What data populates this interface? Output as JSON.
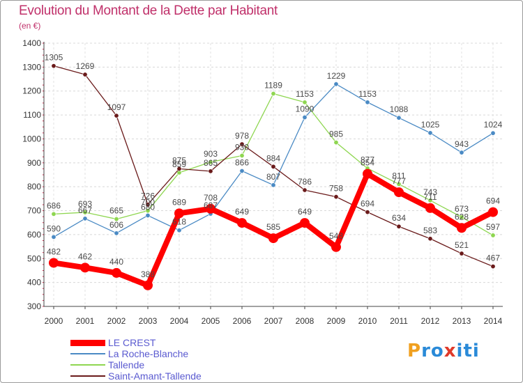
{
  "header": {
    "title": "Evolution du Montant de la Dette par Habitant",
    "unit": "(en €)"
  },
  "brand": {
    "letters": [
      "P",
      "r",
      "o",
      "x",
      "i",
      "t",
      "i"
    ],
    "colors": [
      "#f0a020",
      "#2a8ad8",
      "#2a8ad8",
      "#e03a2a",
      "#2a8ad8",
      "#2a8ad8",
      "#2a8ad8"
    ]
  },
  "chart_data": {
    "type": "line",
    "title": "Evolution du Montant de la Dette par Habitant",
    "ylabel": "(en €)",
    "x": [
      2000,
      2001,
      2002,
      2003,
      2004,
      2005,
      2006,
      2007,
      2008,
      2009,
      2010,
      2011,
      2012,
      2013,
      2014
    ],
    "ylim": [
      300,
      1400
    ],
    "yticks": [
      300,
      400,
      500,
      600,
      700,
      800,
      900,
      1000,
      1100,
      1200,
      1300,
      1400
    ],
    "grid": true,
    "legend_position": "bottom-left",
    "series": [
      {
        "name": "LE CREST",
        "color": "#ff0000",
        "values": [
          482,
          462,
          440,
          388,
          689,
          708,
          649,
          585,
          649,
          548,
          854,
          777,
          711,
          628,
          694
        ]
      },
      {
        "name": "La Roche-Blanche",
        "color": "#4a8ac4",
        "values": [
          590,
          667,
          606,
          680,
          618,
          687,
          866,
          807,
          1090,
          1229,
          1153,
          1088,
          1025,
          943,
          1024
        ]
      },
      {
        "name": "Tallende",
        "color": "#8ed650",
        "values": [
          686,
          693,
          665,
          700,
          859,
          903,
          930,
          1189,
          1153,
          985,
          877,
          811,
          743,
          673,
          597
        ]
      },
      {
        "name": "Saint-Amant-Tallende",
        "color": "#6a1a1a",
        "values": [
          1305,
          1269,
          1097,
          726,
          875,
          865,
          978,
          884,
          786,
          758,
          694,
          634,
          583,
          521,
          467
        ]
      }
    ]
  }
}
